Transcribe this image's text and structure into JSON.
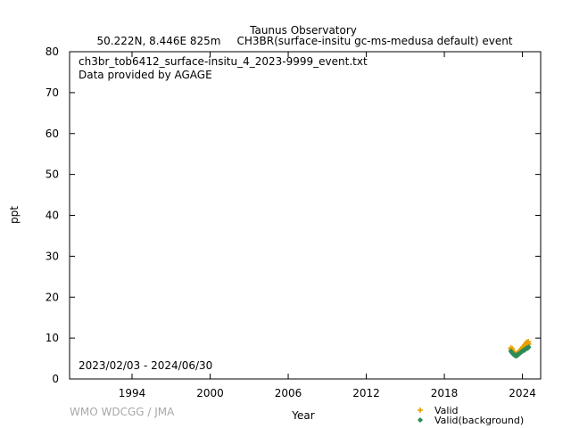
{
  "chart_data": {
    "type": "scatter",
    "title": "Taunus Observatory",
    "subtitle_location": "50.222N, 8.446E 825m",
    "subtitle_species": "CH3BR(surface-insitu gc-ms-medusa default) event",
    "annotation_file": "ch3br_tob6412_surface-insitu_4_2023-9999_event.txt",
    "annotation_provider": "Data provided by AGAGE",
    "date_range": "2023/02/03 - 2024/06/30",
    "credit": "WMO WDCGG / JMA",
    "xlabel": "Year",
    "ylabel": "ppt",
    "xlim": [
      1989.2,
      2025.4
    ],
    "ylim": [
      0,
      80
    ],
    "x_ticks": [
      "1994",
      "2000",
      "2006",
      "2012",
      "2018",
      "2024"
    ],
    "y_ticks": [
      "0",
      "10",
      "20",
      "30",
      "40",
      "50",
      "60",
      "70",
      "80"
    ],
    "legend_position": "bottom-right",
    "series": [
      {
        "name": "Valid",
        "color": "#e8a000",
        "marker": "plus",
        "x": [
          2023.1,
          2023.14,
          2023.18,
          2023.22,
          2023.26,
          2023.3,
          2023.34,
          2023.38,
          2023.42,
          2023.46,
          2023.5,
          2023.54,
          2023.58,
          2023.62,
          2023.66,
          2023.7,
          2023.74,
          2023.78,
          2023.82,
          2023.86,
          2023.9,
          2023.94,
          2023.98,
          2024.02,
          2024.06,
          2024.1,
          2024.14,
          2024.18,
          2024.22,
          2024.26,
          2024.3,
          2024.34,
          2024.38,
          2024.42,
          2024.46,
          2024.49
        ],
        "y": [
          7.6,
          7.2,
          6.9,
          7.4,
          6.8,
          6.5,
          6.6,
          6.2,
          6.0,
          5.9,
          6.1,
          5.8,
          6.3,
          6.0,
          6.4,
          6.2,
          6.7,
          6.5,
          6.9,
          7.1,
          7.3,
          7.0,
          7.5,
          7.8,
          7.6,
          8.0,
          7.7,
          8.3,
          8.1,
          8.6,
          8.9,
          9.0,
          8.4,
          8.7,
          9.1,
          8.5
        ]
      },
      {
        "name": "Valid(background)",
        "color": "#2e8b57",
        "marker": "diamond",
        "x": [
          2023.12,
          2023.16,
          2023.2,
          2023.24,
          2023.28,
          2023.32,
          2023.36,
          2023.4,
          2023.44,
          2023.48,
          2023.52,
          2023.56,
          2023.6,
          2023.64,
          2023.68,
          2023.72,
          2023.76,
          2023.8,
          2023.84,
          2023.88,
          2023.92,
          2023.96,
          2024.0,
          2024.04,
          2024.08,
          2024.12,
          2024.16,
          2024.2,
          2024.24,
          2024.28,
          2024.32,
          2024.36,
          2024.4,
          2024.44,
          2024.48
        ],
        "y": [
          6.8,
          6.6,
          6.4,
          6.3,
          6.1,
          6.0,
          5.9,
          5.8,
          5.7,
          5.8,
          5.6,
          5.7,
          5.9,
          5.8,
          6.0,
          6.1,
          6.2,
          6.3,
          6.4,
          6.5,
          6.6,
          6.7,
          6.8,
          6.9,
          7.0,
          7.1,
          7.0,
          7.2,
          7.3,
          7.4,
          7.5,
          7.6,
          7.5,
          7.7,
          7.8
        ]
      }
    ]
  }
}
